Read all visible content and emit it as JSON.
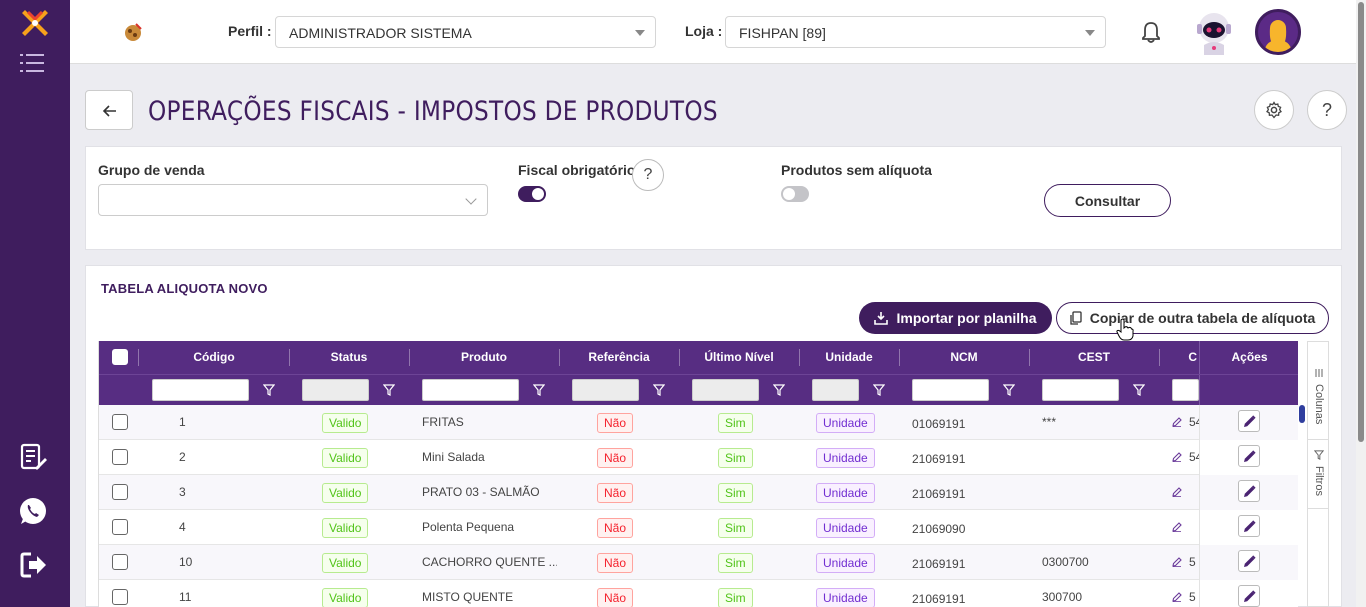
{
  "header": {
    "perfil_label": "Perfil :",
    "perfil_value": "ADMINISTRADOR SISTEMA",
    "loja_label": "Loja :",
    "loja_value": "FISHPAN [89]"
  },
  "page": {
    "title": "OPERAÇÕES FISCAIS - IMPOSTOS DE PRODUTOS",
    "help_symbol": "?"
  },
  "filters": {
    "grupo_label": "Grupo de venda",
    "grupo_value": "",
    "fiscal_label": "Fiscal obrigatório",
    "fiscal_on": true,
    "sem_aliquota_label": "Produtos sem alíquota",
    "sem_aliquota_on": false,
    "help_symbol": "?",
    "consultar_label": "Consultar"
  },
  "table": {
    "title": "TABELA ALIQUOTA NOVO",
    "import_label": "Importar por planilha",
    "copy_label": "Copiar de outra tabela de alíquota",
    "columns": {
      "codigo": "Código",
      "status": "Status",
      "produto": "Produto",
      "referencia": "Referência",
      "ultimo_nivel": "Último Nível",
      "unidade": "Unidade",
      "ncm": "NCM",
      "cest": "CEST",
      "partial": "C",
      "acoes": "Ações"
    },
    "side_tabs": {
      "colunas": "Colunas",
      "filtros": "Filtros"
    },
    "rows": [
      {
        "codigo": "1",
        "status": "Valido",
        "produto": "FRITAS",
        "referencia": "Não",
        "ultimo_nivel": "Sim",
        "unidade": "Unidade",
        "ncm": "01069191",
        "cest": "***",
        "extra": "54"
      },
      {
        "codigo": "2",
        "status": "Valido",
        "produto": "Mini Salada",
        "referencia": "Não",
        "ultimo_nivel": "Sim",
        "unidade": "Unidade",
        "ncm": "21069191",
        "cest": "",
        "extra": "54"
      },
      {
        "codigo": "3",
        "status": "Valido",
        "produto": "PRATO 03 - SALMÃO",
        "referencia": "Não",
        "ultimo_nivel": "Sim",
        "unidade": "Unidade",
        "ncm": "21069191",
        "cest": "",
        "extra": ""
      },
      {
        "codigo": "4",
        "status": "Valido",
        "produto": "Polenta Pequena",
        "referencia": "Não",
        "ultimo_nivel": "Sim",
        "unidade": "Unidade",
        "ncm": "21069090",
        "cest": "",
        "extra": ""
      },
      {
        "codigo": "10",
        "status": "Valido",
        "produto": "CACHORRO QUENTE ...",
        "referencia": "Não",
        "ultimo_nivel": "Sim",
        "unidade": "Unidade",
        "ncm": "21069191",
        "cest": "0300700",
        "extra": "5"
      },
      {
        "codigo": "11",
        "status": "Valido",
        "produto": "MISTO QUENTE",
        "referencia": "Não",
        "ultimo_nivel": "Sim",
        "unidade": "Unidade",
        "ncm": "21069191",
        "cest": "300700",
        "extra": "5"
      }
    ]
  },
  "colors": {
    "primary": "#3f1d5e",
    "header_bg": "#572d82",
    "valid_green": "#52c41a",
    "no_red": "#f5222d",
    "unit_purple": "#722ed1"
  }
}
